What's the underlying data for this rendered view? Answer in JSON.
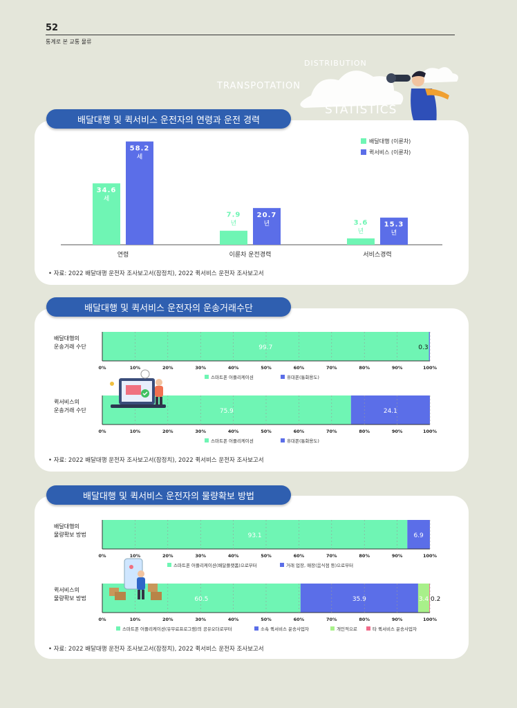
{
  "header": {
    "page_number": "52",
    "running_title": "통계로 본 교통 물류"
  },
  "decoration": {
    "words": [
      "DISTRIBUTION",
      "TRANSPOTATION",
      "STATISTICS"
    ]
  },
  "section1": {
    "title": "배달대행 및 퀵서비스 운전자의 연령과 운전 경력",
    "source": "• 자료: 2022 배달대행 운전자 조사보고서(잠정치), 2022 퀵서비스 운전자 조사보고서",
    "chart_data": {
      "type": "bar",
      "categories": [
        "연령",
        "이륜차 운전경력",
        "서비스경력"
      ],
      "series": [
        {
          "name": "배달대행 (이륜차)",
          "values": [
            34.6,
            7.9,
            3.6
          ],
          "units": [
            "세",
            "년",
            "년"
          ],
          "color": "#6ff5b4"
        },
        {
          "name": "퀵서비스 (이륜차)",
          "values": [
            58.2,
            20.7,
            15.3
          ],
          "units": [
            "세",
            "년",
            "년"
          ],
          "color": "#5b6ee8"
        }
      ],
      "ylim": [
        0,
        60
      ],
      "legend": "top-right"
    }
  },
  "section2": {
    "title": "배달대행 및 퀵서비스 운전자의 운송거래수단",
    "source": "• 자료: 2022 배달대행 운전자 조사보고서(잠정치), 2022 퀵서비스 운전자 조사보고서",
    "chart_data": [
      {
        "type": "bar",
        "label_lines": [
          "배달대행의",
          "운송거래 수단"
        ],
        "series": [
          {
            "name": "스마트폰 어플리케이션",
            "value": 99.7,
            "label": "99.7",
            "color": "#6ff5b4"
          },
          {
            "name": "휴대폰(통화용도)",
            "value": 0.3,
            "label": "0.3",
            "color": "#5b6ee8"
          }
        ],
        "xlim": [
          0,
          100
        ],
        "ticks": [
          "0%",
          "10%",
          "20%",
          "30%",
          "40%",
          "50%",
          "60%",
          "70%",
          "80%",
          "90%",
          "100%"
        ]
      },
      {
        "type": "bar",
        "label_lines": [
          "퀵서비스의",
          "운송거래 수단"
        ],
        "series": [
          {
            "name": "스마트폰 어플리케이션",
            "value": 75.9,
            "label": "75.9",
            "color": "#6ff5b4"
          },
          {
            "name": "휴대폰(통화용도)",
            "value": 24.1,
            "label": "24.1",
            "color": "#5b6ee8"
          }
        ],
        "xlim": [
          0,
          100
        ],
        "ticks": [
          "0%",
          "10%",
          "20%",
          "30%",
          "40%",
          "50%",
          "60%",
          "70%",
          "80%",
          "90%",
          "100%"
        ]
      }
    ]
  },
  "section3": {
    "title": "배달대행 및 퀵서비스 운전자의 물량확보 방법",
    "source": "• 자료: 2022 배달대행 운전자 조사보고서(잠정치), 2022 퀵서비스 운전자 조사보고서",
    "chart_data": [
      {
        "type": "bar",
        "label_lines": [
          "배달대행의",
          "물량확보 방법"
        ],
        "series": [
          {
            "name": "스마트폰 어플리케이션(배달플랫폼)으로부터",
            "value": 93.1,
            "label": "93.1",
            "color": "#6ff5b4"
          },
          {
            "name": "거래 업장, 매장(음식점 등)으로부터",
            "value": 6.9,
            "label": "6.9",
            "color": "#5b6ee8"
          }
        ],
        "xlim": [
          0,
          100
        ],
        "ticks": [
          "0%",
          "10%",
          "20%",
          "30%",
          "40%",
          "50%",
          "60%",
          "70%",
          "80%",
          "90%",
          "100%"
        ]
      },
      {
        "type": "bar",
        "label_lines": [
          "퀵서비스의",
          "물량확보 방법"
        ],
        "series": [
          {
            "name": "스마트폰 어플리케이션(유무료프로그램)의 공유오더로부터",
            "value": 60.5,
            "label": "60.5",
            "color": "#6ff5b4"
          },
          {
            "name": "소속 퀵서비스 운송사업자",
            "value": 35.9,
            "label": "35.9",
            "color": "#5b6ee8"
          },
          {
            "name": "개인적으로",
            "value": 3.4,
            "label": "3.4",
            "color": "#a8f08a"
          },
          {
            "name": "타 퀵서비스 운송사업자",
            "value": 0.2,
            "label": "0.2",
            "color": "#f06b8a"
          }
        ],
        "xlim": [
          0,
          100
        ],
        "ticks": [
          "0%",
          "10%",
          "20%",
          "30%",
          "40%",
          "50%",
          "60%",
          "70%",
          "80%",
          "90%",
          "100%"
        ]
      }
    ]
  }
}
